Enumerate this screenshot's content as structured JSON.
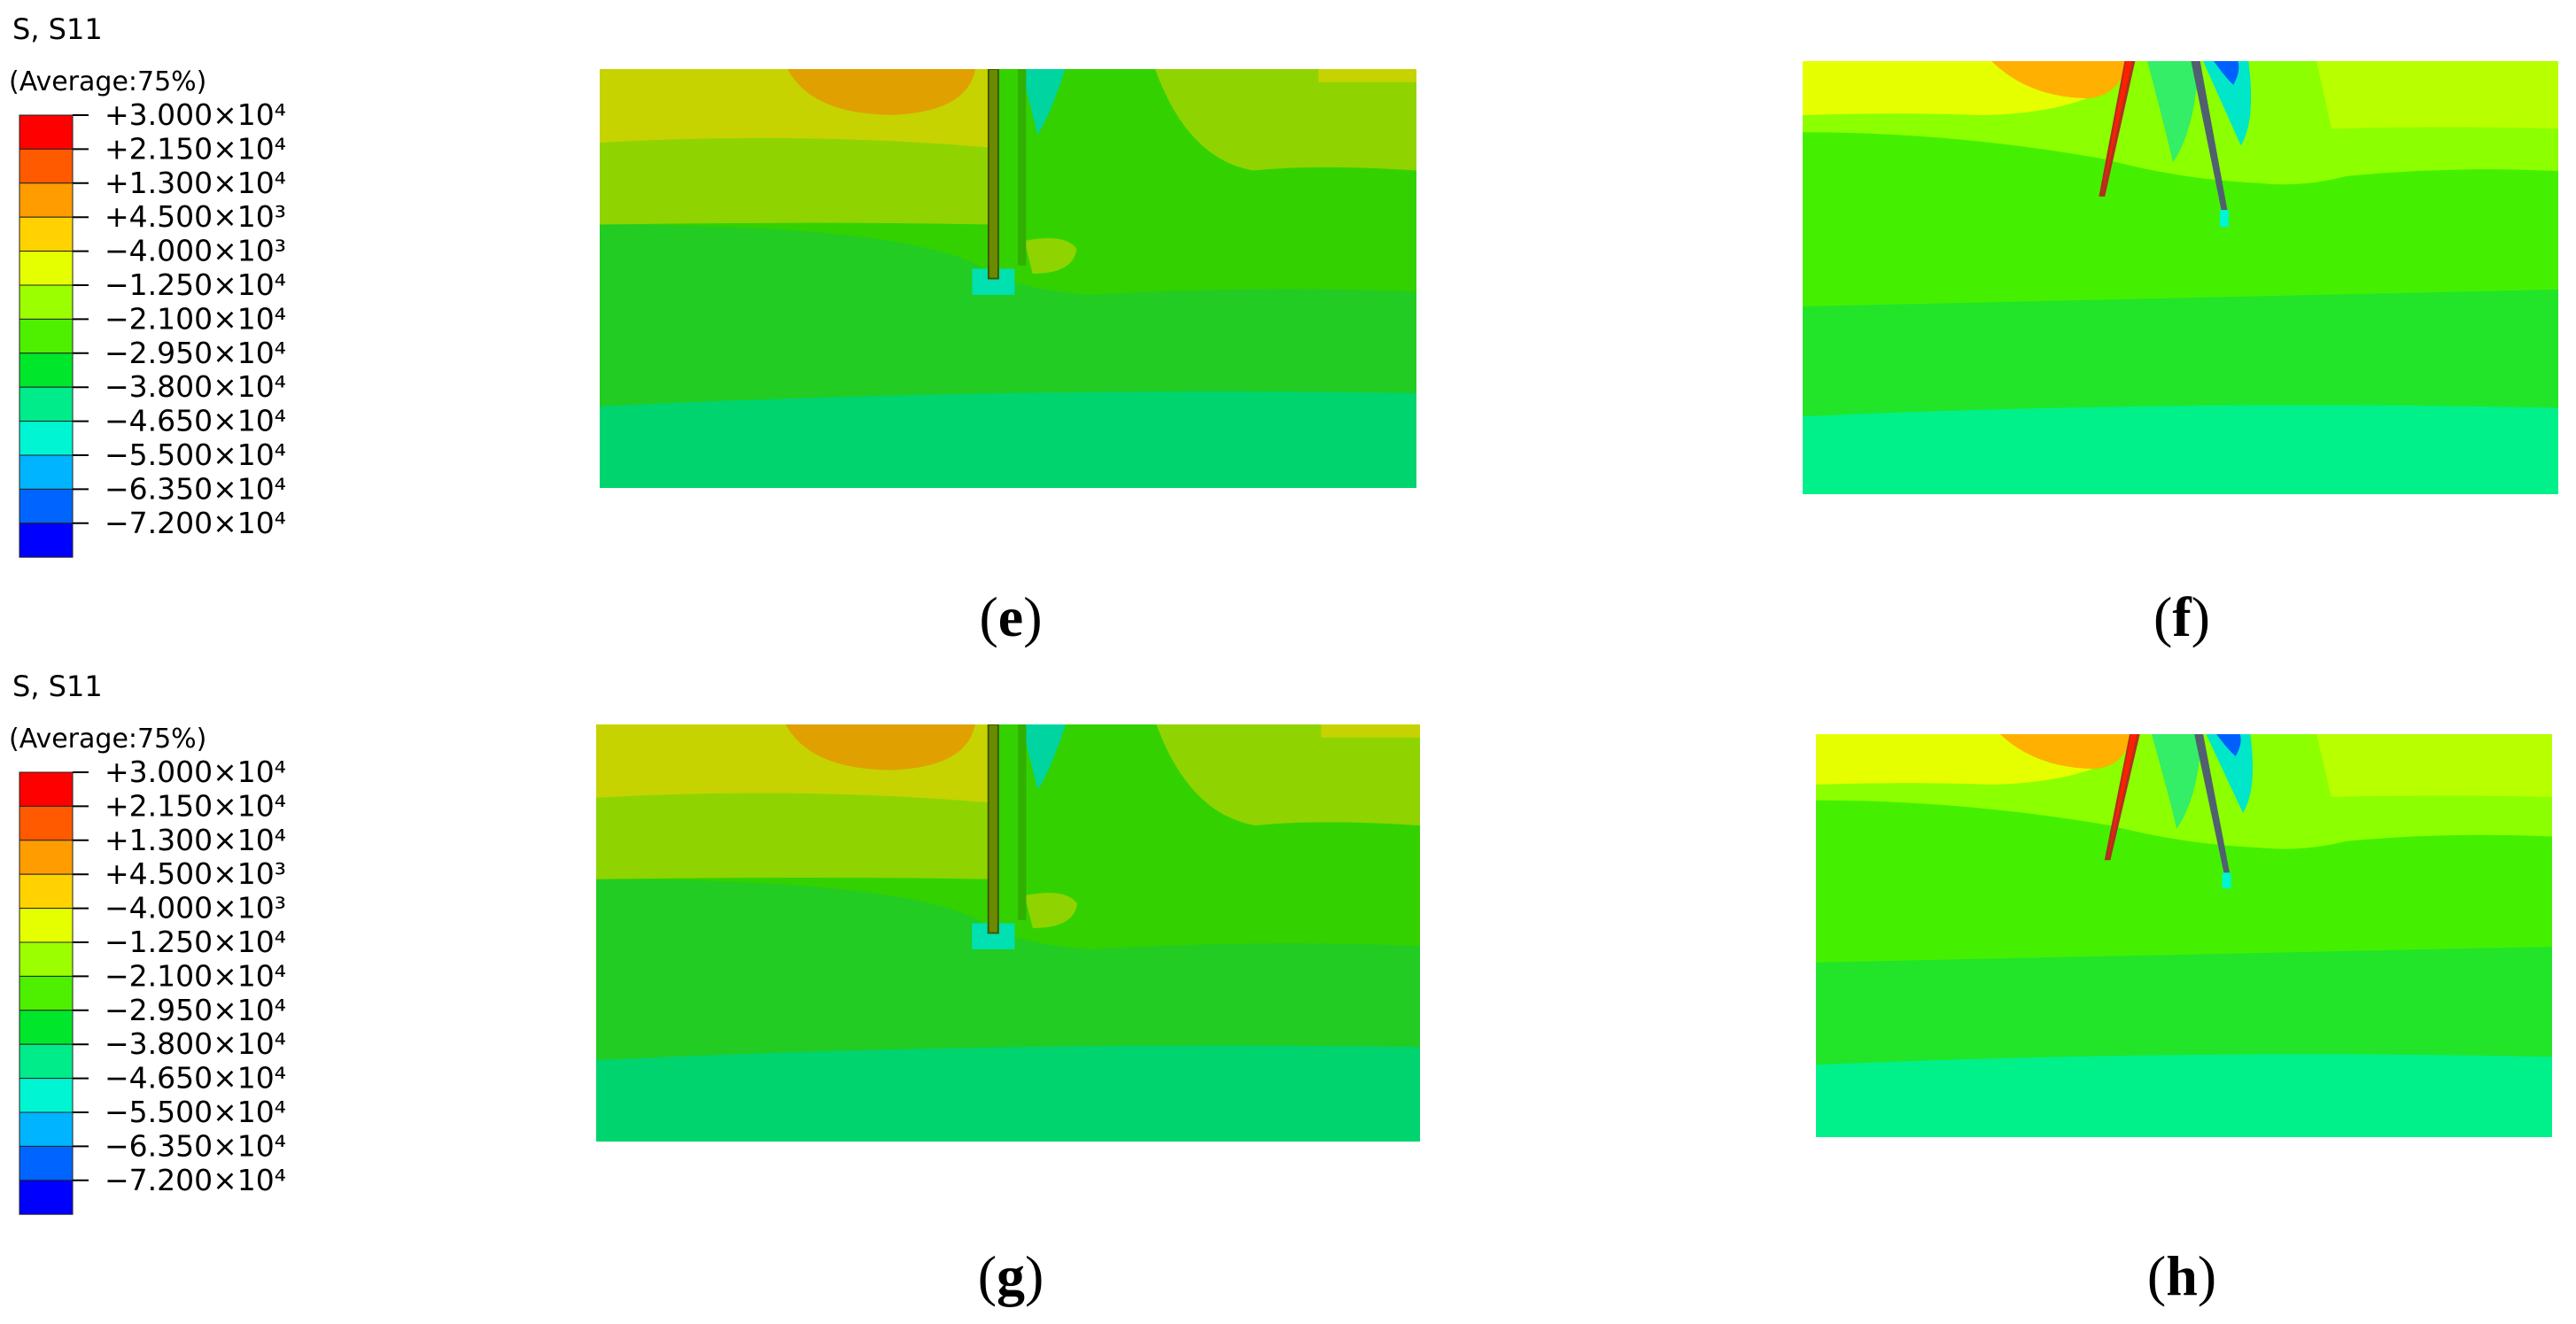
{
  "legends": [
    {
      "title": "S, S11",
      "subtitle": "(Average:75%)",
      "labels": [
        "+3.000×10⁴",
        "+2.150×10⁴",
        "+1.300×10⁴",
        "+4.500×10³",
        "−4.000×10³",
        "−1.250×10⁴",
        "−2.100×10⁴",
        "−2.950×10⁴",
        "−3.800×10⁴",
        "−4.650×10⁴",
        "−5.500×10⁴",
        "−6.350×10⁴",
        "−7.200×10⁴"
      ],
      "colors": [
        "#ff0000",
        "#ff5a00",
        "#ff9c00",
        "#ffd200",
        "#e6ff00",
        "#9cff00",
        "#4ef000",
        "#00e62a",
        "#00ec8a",
        "#00f5d2",
        "#00b4ff",
        "#0064ff",
        "#0000ff"
      ]
    },
    {
      "title": "S, S11",
      "subtitle": "(Average:75%)",
      "labels": [
        "+3.000×10⁴",
        "+2.150×10⁴",
        "+1.300×10⁴",
        "+4.500×10³",
        "−4.000×10³",
        "−1.250×10⁴",
        "−2.100×10⁴",
        "−2.950×10⁴",
        "−3.800×10⁴",
        "−4.650×10⁴",
        "−5.500×10⁴",
        "−6.350×10⁴",
        "−7.200×10⁴"
      ],
      "colors": [
        "#ff0000",
        "#ff5a00",
        "#ff9c00",
        "#ffd200",
        "#e6ff00",
        "#9cff00",
        "#4ef000",
        "#00e62a",
        "#00ec8a",
        "#00f5d2",
        "#00b4ff",
        "#0064ff",
        "#0000ff"
      ]
    }
  ],
  "panels": [
    {
      "label": "e"
    },
    {
      "label": "f"
    },
    {
      "label": "g"
    },
    {
      "label": "h"
    }
  ]
}
